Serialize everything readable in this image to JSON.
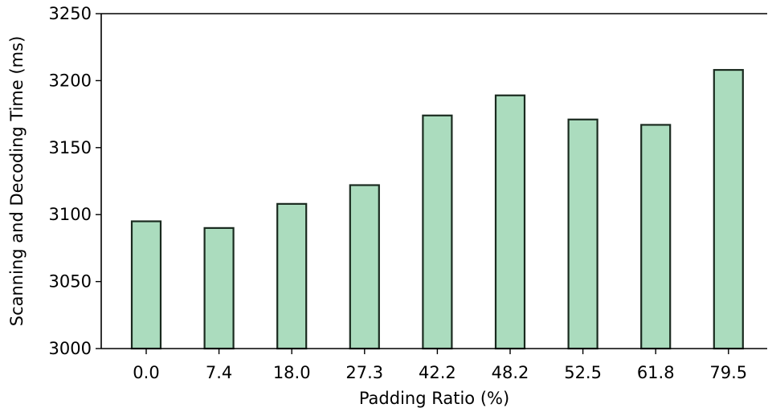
{
  "chart_data": {
    "type": "bar",
    "title": "",
    "xlabel": "Padding Ratio (%)",
    "ylabel": "Scanning and Decoding Time (ms)",
    "categories": [
      "0.0",
      "7.4",
      "18.0",
      "27.3",
      "42.2",
      "48.2",
      "52.5",
      "61.8",
      "79.5"
    ],
    "values": [
      3095,
      3090,
      3108,
      3122,
      3174,
      3189,
      3171,
      3167,
      3208
    ],
    "ylim": [
      3000,
      3250
    ],
    "yticks": [
      3000,
      3050,
      3100,
      3150,
      3200,
      3250
    ],
    "grid": false,
    "legend": "none",
    "bar_color": "#abdcbe",
    "edge_color": "#1a2a1f"
  }
}
